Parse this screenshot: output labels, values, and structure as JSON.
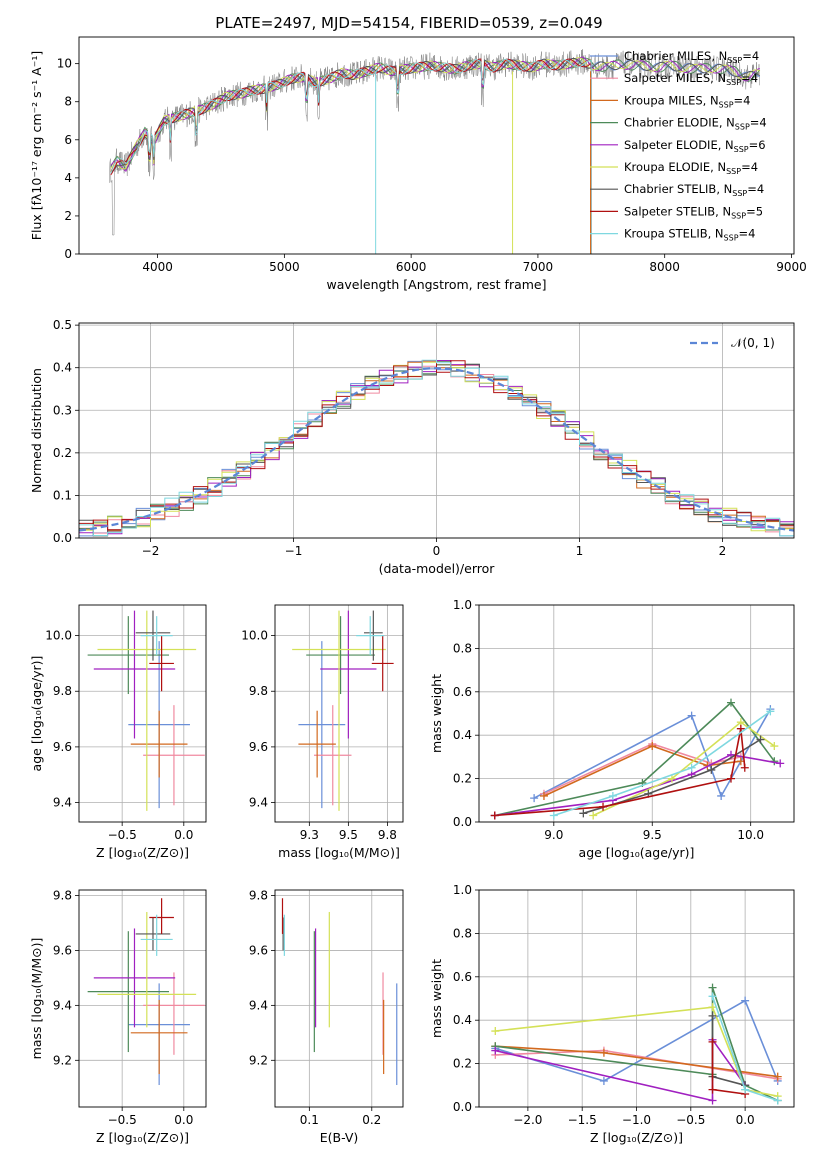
{
  "figure_title": "PLATE=2497, MJD=54154, FIBERID=0539, z=0.049",
  "chart_data": [
    {
      "id": "spectrum",
      "type": "line",
      "title": "PLATE=2497, MJD=54154, FIBERID=0539, z=0.049",
      "xlabel": "wavelength [Angstrom, rest frame]",
      "ylabel": "Flux [fλ10⁻¹⁷ erg cm⁻² s⁻¹ A⁻¹]",
      "xlim": [
        3380,
        9020
      ],
      "ylim": [
        0,
        11.4
      ],
      "xticks": [
        4000,
        5000,
        6000,
        7000,
        8000,
        9000
      ],
      "yticks": [
        0,
        2,
        4,
        6,
        8,
        10
      ],
      "legend_position": "top-right",
      "data_series": {
        "name": "data",
        "color": "#808080",
        "x": [
          3620,
          3680,
          3750,
          3820,
          3900,
          3970,
          4050,
          4150,
          4250,
          4350,
          4450,
          4550,
          4650,
          4750,
          4850,
          4950,
          5050,
          5150,
          5250,
          5350,
          5450,
          5550,
          5650,
          5750,
          5850,
          5950,
          6050,
          6150,
          6250,
          6350,
          6450,
          6550,
          6650,
          6750,
          6850,
          6950,
          7050,
          7150,
          7250,
          7350,
          7450,
          7550,
          7650,
          7750,
          7850,
          7950,
          8050,
          8150,
          8250,
          8350,
          8450,
          8550,
          8650,
          8750
        ],
        "y": [
          4.3,
          4.9,
          4.6,
          5.5,
          6.4,
          5.9,
          7.0,
          7.2,
          7.4,
          7.6,
          7.9,
          8.3,
          8.4,
          8.6,
          8.7,
          8.9,
          9.2,
          9.3,
          9.0,
          9.2,
          9.5,
          9.4,
          9.6,
          9.8,
          9.6,
          9.7,
          9.8,
          9.9,
          9.8,
          9.7,
          9.9,
          10.0,
          9.8,
          10.0,
          9.9,
          9.8,
          10.0,
          9.9,
          10.0,
          10.1,
          9.9,
          9.8,
          10.0,
          9.9,
          9.9,
          9.8,
          9.9,
          9.8,
          9.7,
          9.8,
          9.7,
          9.6,
          9.3,
          9.5
        ]
      },
      "models": [
        {
          "name": "Chabrier MILES, N_SSP=4",
          "color": "#6a8fd8"
        },
        {
          "name": "Salpeter MILES, N_SSP=4",
          "color": "#f08aa0"
        },
        {
          "name": "Kroupa MILES, N_SSP=4",
          "color": "#d2691e"
        },
        {
          "name": "Chabrier ELODIE, N_SSP=4",
          "color": "#4d8a59"
        },
        {
          "name": "Salpeter ELODIE, N_SSP=6",
          "color": "#a020c0"
        },
        {
          "name": "Kroupa ELODIE, N_SSP=4",
          "color": "#d4e157"
        },
        {
          "name": "Chabrier STELIB, N_SSP=4",
          "color": "#555555"
        },
        {
          "name": "Salpeter STELIB, N_SSP=5",
          "color": "#b01010"
        },
        {
          "name": "Kroupa STELIB, N_SSP=4",
          "color": "#7fd8e0"
        }
      ]
    },
    {
      "id": "residuals",
      "type": "line",
      "xlabel": "(data-model)/error",
      "ylabel": "Normed distribution",
      "xlim": [
        -2.5,
        2.5
      ],
      "ylim": [
        0,
        0.505
      ],
      "xticks": [
        -2,
        -1,
        0,
        1,
        2
      ],
      "yticks": [
        0.0,
        0.1,
        0.2,
        0.3,
        0.4,
        0.5
      ],
      "grid": true,
      "legend_position": "top-right",
      "legend": [
        "𝒩(0, 1)"
      ],
      "reference": {
        "name": "N(0,1)",
        "mean": 0,
        "sigma": 1,
        "color": "#5b86d6",
        "style": "dashed"
      },
      "bin_width": 0.1
    },
    {
      "id": "age-vs-Z",
      "type": "scatter",
      "xlabel": "Z [log₁₀(Z/Z⊙)]",
      "ylabel": "age  [log₁₀(age/yr)]",
      "xlim": [
        -0.85,
        0.18
      ],
      "ylim": [
        9.33,
        10.11
      ],
      "xticks": [
        -0.5,
        0.0
      ],
      "yticks": [
        9.4,
        9.6,
        9.8,
        10.0
      ],
      "grid": true
    },
    {
      "id": "age-vs-mass",
      "type": "scatter",
      "xlabel": "mass [log₁₀(M/M⊙)]",
      "xlim": [
        9.03,
        9.85
      ],
      "ylim": [
        9.33,
        10.11
      ],
      "xticks": [
        9.25,
        9.5,
        9.75
      ],
      "yticks": [
        9.4,
        9.6,
        9.8,
        10.0
      ],
      "grid": true
    },
    {
      "id": "weight-vs-age",
      "type": "line",
      "xlabel": "age  [log₁₀(age/yr)]",
      "ylabel": "mass weight",
      "xlim": [
        8.62,
        10.22
      ],
      "ylim": [
        0,
        1
      ],
      "xticks": [
        9.0,
        9.5,
        10.0
      ],
      "yticks": [
        0.0,
        0.2,
        0.4,
        0.6,
        0.8,
        1.0
      ],
      "grid": true,
      "series": [
        {
          "name": "Chabrier MILES",
          "color": "#6a8fd8",
          "x": [
            8.9,
            9.7,
            9.85,
            10.1
          ],
          "y": [
            0.11,
            0.49,
            0.12,
            0.52
          ]
        },
        {
          "name": "Salpeter MILES",
          "color": "#f08aa0",
          "x": [
            8.95,
            9.5,
            9.8,
            9.95
          ],
          "y": [
            0.13,
            0.36,
            0.27,
            0.3
          ]
        },
        {
          "name": "Kroupa MILES",
          "color": "#d2691e",
          "x": [
            8.95,
            9.5,
            9.78,
            9.95
          ],
          "y": [
            0.12,
            0.35,
            0.26,
            0.28
          ]
        },
        {
          "name": "Chabrier ELODIE",
          "color": "#4d8a59",
          "x": [
            8.7,
            9.45,
            9.9,
            10.12
          ],
          "y": [
            0.03,
            0.18,
            0.55,
            0.28
          ]
        },
        {
          "name": "Salpeter ELODIE",
          "color": "#a020c0",
          "x": [
            8.7,
            9.3,
            9.7,
            9.9,
            10.15
          ],
          "y": [
            0.03,
            0.1,
            0.22,
            0.31,
            0.27
          ]
        },
        {
          "name": "Kroupa ELODIE",
          "color": "#d4e157",
          "x": [
            9.2,
            9.6,
            9.95,
            10.12
          ],
          "y": [
            0.03,
            0.2,
            0.46,
            0.35
          ]
        },
        {
          "name": "Chabrier STELIB",
          "color": "#555555",
          "x": [
            9.15,
            9.48,
            9.8,
            10.05
          ],
          "y": [
            0.04,
            0.13,
            0.24,
            0.38
          ]
        },
        {
          "name": "Salpeter STELIB",
          "color": "#b01010",
          "x": [
            8.7,
            9.25,
            9.9,
            9.95,
            9.97
          ],
          "y": [
            0.03,
            0.07,
            0.2,
            0.43,
            0.25
          ]
        },
        {
          "name": "Kroupa STELIB",
          "color": "#7fd8e0",
          "x": [
            9.0,
            9.3,
            9.7,
            10.1
          ],
          "y": [
            0.03,
            0.12,
            0.25,
            0.51
          ]
        }
      ]
    },
    {
      "id": "mass-vs-Z",
      "type": "scatter",
      "xlabel": "Z [log₁₀(Z/Z⊙)]",
      "ylabel": "mass [log₁₀(M/M⊙)]",
      "xlim": [
        -0.85,
        0.18
      ],
      "ylim": [
        9.03,
        9.82
      ],
      "xticks": [
        -0.5,
        0.0
      ],
      "yticks": [
        9.2,
        9.4,
        9.6,
        9.8
      ],
      "grid": true
    },
    {
      "id": "mass-vs-EBV",
      "type": "scatter",
      "xlabel": "E(B-V)",
      "xlim": [
        0.045,
        0.25
      ],
      "ylim": [
        9.03,
        9.82
      ],
      "xticks": [
        0.1,
        0.2
      ],
      "yticks": [
        9.2,
        9.4,
        9.6,
        9.8
      ],
      "grid": true
    },
    {
      "id": "weight-vs-Z",
      "type": "line",
      "xlabel": "Z [log₁₀(Z/Z⊙)]",
      "ylabel": "mass weight",
      "xlim": [
        -2.45,
        0.45
      ],
      "ylim": [
        0,
        1
      ],
      "xticks": [
        -2.0,
        -1.5,
        -1.0,
        -0.5,
        0.0
      ],
      "yticks": [
        0.0,
        0.2,
        0.4,
        0.6,
        0.8,
        1.0
      ],
      "grid": true,
      "series": [
        {
          "name": "Chabrier MILES",
          "color": "#6a8fd8",
          "x": [
            -2.3,
            -1.3,
            0.0,
            0.3
          ],
          "y": [
            0.27,
            0.12,
            0.49,
            0.12
          ]
        },
        {
          "name": "Salpeter MILES",
          "color": "#f08aa0",
          "x": [
            -2.3,
            -1.3,
            0.3
          ],
          "y": [
            0.24,
            0.26,
            0.13
          ]
        },
        {
          "name": "Kroupa MILES",
          "color": "#d2691e",
          "x": [
            -2.3,
            -1.3,
            0.3
          ],
          "y": [
            0.28,
            0.25,
            0.14
          ]
        },
        {
          "name": "Chabrier ELODIE",
          "color": "#4d8a59",
          "x": [
            -2.3,
            -0.3,
            -0.3,
            0.0,
            0.3
          ],
          "y": [
            0.28,
            0.15,
            0.55,
            0.1,
            0.03
          ]
        },
        {
          "name": "Salpeter ELODIE",
          "color": "#a020c0",
          "x": [
            -2.3,
            -0.3,
            -0.3,
            0.0
          ],
          "y": [
            0.26,
            0.03,
            0.31,
            0.1
          ]
        },
        {
          "name": "Kroupa ELODIE",
          "color": "#d4e157",
          "x": [
            -2.3,
            -0.3,
            0.0,
            0.3
          ],
          "y": [
            0.35,
            0.46,
            0.08,
            0.05
          ]
        },
        {
          "name": "Chabrier STELIB",
          "color": "#555555",
          "x": [
            -0.3,
            -0.3,
            0.0
          ],
          "y": [
            0.42,
            0.14,
            0.1
          ]
        },
        {
          "name": "Salpeter STELIB",
          "color": "#b01010",
          "x": [
            -0.3,
            -0.3,
            0.0
          ],
          "y": [
            0.3,
            0.08,
            0.06
          ]
        },
        {
          "name": "Kroupa STELIB",
          "color": "#7fd8e0",
          "x": [
            -0.3,
            0.0,
            0.3
          ],
          "y": [
            0.51,
            0.08,
            0.03
          ]
        }
      ]
    }
  ],
  "fits": [
    {
      "model": "Chabrier MILES",
      "color": "#6a8fd8",
      "Z": -0.2,
      "Z_err": 0.25,
      "age": 9.68,
      "age_err": 0.3,
      "mass": 9.33,
      "mass_err": 0.15,
      "mass_asym": 0.22,
      "ebv": 0.24
    },
    {
      "model": "Salpeter MILES",
      "color": "#f08aa0",
      "Z": -0.08,
      "Z_err": 0.25,
      "age": 9.57,
      "age_err": 0.18,
      "mass": 9.4,
      "mass_err": 0.12,
      "mass_asym": 0.18,
      "ebv": 0.218
    },
    {
      "model": "Kroupa MILES",
      "color": "#d2691e",
      "Z": -0.2,
      "Z_err": 0.23,
      "age": 9.61,
      "age_err": 0.12,
      "mass": 9.3,
      "mass_err": 0.12,
      "mass_asym": 0.15,
      "ebv": 0.219
    },
    {
      "model": "Chabrier ELODIE",
      "color": "#4d8a59",
      "Z": -0.45,
      "Z_err": 0.33,
      "age": 9.93,
      "age_err": 0.14,
      "mass": 9.45,
      "mass_err": 0.22,
      "mass_asym": 0.22,
      "ebv": 0.108
    },
    {
      "model": "Salpeter ELODIE",
      "color": "#a020c0",
      "Z": -0.4,
      "Z_err": 0.33,
      "age": 9.88,
      "age_err": 0.25,
      "mass": 9.5,
      "mass_err": 0.18,
      "mass_asym": 0.18,
      "ebv": 0.11
    },
    {
      "model": "Kroupa ELODIE",
      "color": "#d4e157",
      "Z": -0.3,
      "Z_err": 0.4,
      "age": 9.95,
      "age_err": 0.58,
      "mass": 9.44,
      "mass_err": 0.3,
      "mass_asym": 0.12,
      "ebv": 0.132
    },
    {
      "model": "Chabrier STELIB",
      "color": "#555555",
      "Z": -0.25,
      "Z_err": 0.14,
      "age": 10.01,
      "age_err": 0.1,
      "mass": 9.66,
      "mass_err": 0.06,
      "mass_asym": 0.06,
      "ebv": 0.058
    },
    {
      "model": "Salpeter STELIB",
      "color": "#b01010",
      "Z": -0.18,
      "Z_err": 0.1,
      "age": 9.9,
      "age_err": 0.1,
      "mass": 9.72,
      "mass_err": 0.07,
      "mass_asym": 0.06,
      "ebv": 0.057
    },
    {
      "model": "Kroupa STELIB",
      "color": "#7fd8e0",
      "Z": -0.22,
      "Z_err": 0.13,
      "age": 10.0,
      "age_err": 0.07,
      "mass": 9.64,
      "mass_err": 0.09,
      "mass_asym": 0.06,
      "ebv": 0.06
    }
  ]
}
